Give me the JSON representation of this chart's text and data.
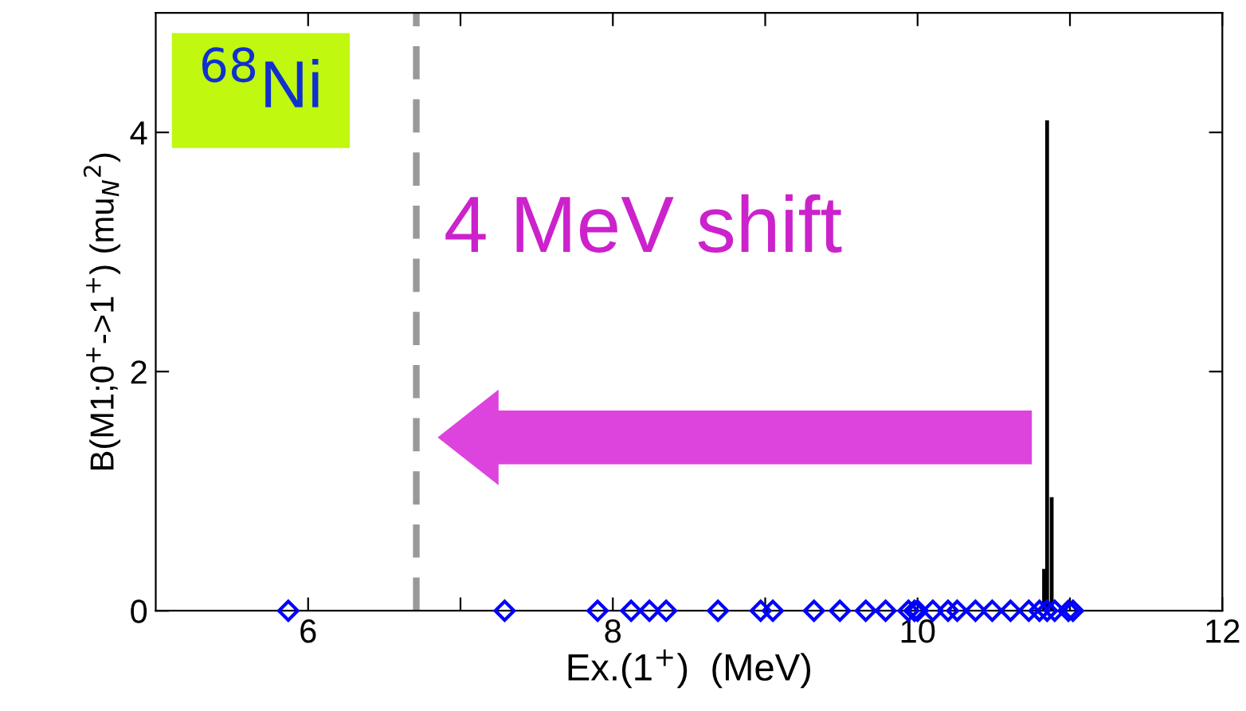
{
  "chart_data": {
    "type": "bar",
    "xlabel": "Ex.(1$^{+}$)  (MeV)",
    "ylabel": "B(M1;0$^{+}$->1$^{+}$) (mu$_{N}$$^{2}$)",
    "xlim": [
      5,
      12
    ],
    "ylim": [
      0,
      5
    ],
    "xticks": [
      6,
      {
        "value": 7,
        "label": null
      },
      8,
      {
        "value": 9,
        "label": null
      },
      10,
      {
        "value": 11,
        "label": null
      },
      12
    ],
    "yticks": [
      0,
      2,
      4
    ],
    "series": [
      {
        "color": "#000000",
        "x": [
          10.83,
          10.85,
          10.88
        ],
        "values": [
          0.35,
          4.1,
          0.95
        ]
      },
      {
        "type": "scatter",
        "color": "#0000ff",
        "marker": "diamond",
        "x": [
          5.87,
          7.29,
          7.9,
          8.12,
          8.24,
          8.35,
          8.69,
          8.97,
          9.05,
          9.32,
          9.49,
          9.66,
          9.79,
          9.94,
          9.98,
          10.0,
          10.1,
          10.2,
          10.26,
          10.38,
          10.49,
          10.61,
          10.73,
          10.8,
          10.85,
          10.9,
          10.99,
          11.02
        ],
        "values": [
          0,
          0,
          0,
          0,
          0,
          0,
          0,
          0,
          0,
          0,
          0,
          0,
          0,
          0,
          0,
          0,
          0,
          0,
          0,
          0,
          0,
          0,
          0,
          0,
          0,
          0,
          0,
          0
        ]
      }
    ],
    "ref_lines": [
      {
        "axis": "x",
        "value": 6.71,
        "color": "#999999",
        "line_style": "dashed"
      }
    ],
    "annotations": [
      "$^{68}$Ni",
      "4 MeV shift"
    ],
    "grid": false
  }
}
